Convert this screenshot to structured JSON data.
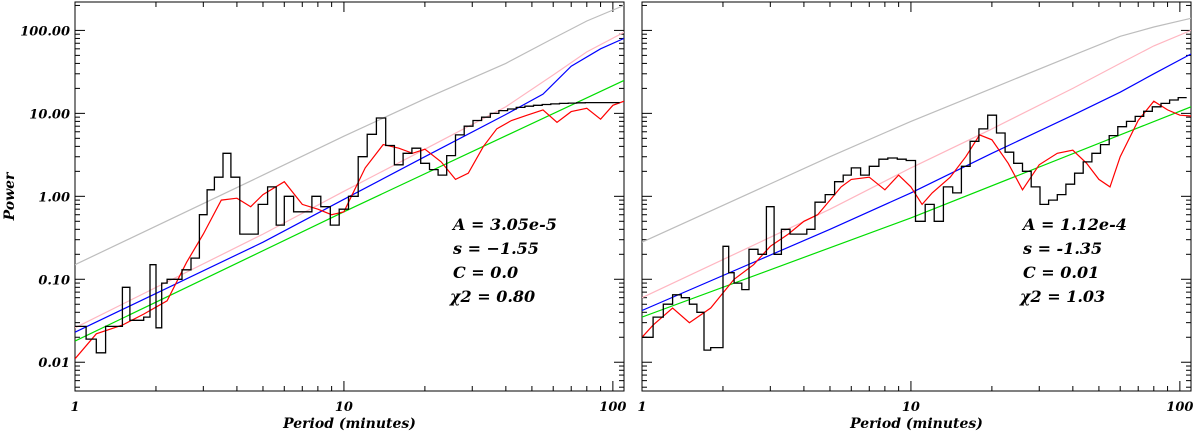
{
  "chart_data": [
    {
      "type": "line",
      "xlabel": "Period (minutes)",
      "ylabel": "Power",
      "xscale": "log",
      "yscale": "log",
      "xlim": [
        1,
        110
      ],
      "ylim": [
        0.0045,
        220
      ],
      "xticks": [
        {
          "v": 1,
          "label": "1"
        },
        {
          "v": 10,
          "label": "10"
        },
        {
          "v": 100,
          "label": "100"
        }
      ],
      "yticks": [
        {
          "v": 0.01,
          "label": "0.01"
        },
        {
          "v": 0.1,
          "label": "0.10"
        },
        {
          "v": 1,
          "label": "1.00"
        },
        {
          "v": 10,
          "label": "10.00"
        },
        {
          "v": 100,
          "label": "100.00"
        }
      ],
      "annotations": [
        "A = 3.05e-5",
        "s = −1.55",
        "C = 0.0",
        "χ2 = 0.80"
      ],
      "series": [
        {
          "color": "#bdbdbd",
          "style": "line",
          "x": [
            1,
            5,
            10,
            20,
            40,
            60,
            80,
            110
          ],
          "y": [
            0.15,
            1.8,
            5.3,
            15,
            40,
            80,
            130,
            200
          ]
        },
        {
          "color": "#ffb6c1",
          "style": "line",
          "x": [
            1,
            5,
            10,
            20,
            40,
            60,
            80,
            110
          ],
          "y": [
            0.026,
            0.35,
            1.15,
            3.7,
            12,
            29,
            55,
            95
          ]
        },
        {
          "color": "#0000ff",
          "style": "line",
          "x": [
            1,
            5,
            10,
            20,
            40,
            55,
            70,
            90,
            110
          ],
          "y": [
            0.023,
            0.28,
            0.92,
            3.0,
            9.7,
            17,
            37,
            60,
            80
          ]
        },
        {
          "color": "#00dd00",
          "style": "line",
          "x": [
            1,
            10,
            110
          ],
          "y": [
            0.018,
            0.65,
            25
          ]
        },
        {
          "color": "#ff0000",
          "style": "line",
          "x": [
            1,
            1.2,
            1.5,
            1.8,
            2.2,
            2.6,
            3.0,
            3.5,
            4.0,
            4.5,
            5.0,
            6.0,
            7.0,
            8.0,
            9.0,
            10,
            12,
            14,
            16,
            18,
            20,
            23,
            26,
            29,
            33,
            37,
            42,
            48,
            55,
            62,
            70,
            80,
            90,
            100,
            110
          ],
          "y": [
            0.011,
            0.022,
            0.028,
            0.038,
            0.055,
            0.16,
            0.35,
            0.9,
            0.95,
            0.75,
            1.05,
            1.5,
            0.8,
            0.7,
            0.6,
            0.65,
            2.2,
            4.2,
            3.8,
            3.3,
            3.7,
            2.6,
            1.6,
            1.9,
            4.0,
            6.5,
            8.2,
            9.5,
            11.0,
            7.8,
            10.5,
            11.5,
            8.5,
            12.5,
            14.0
          ]
        },
        {
          "color": "#000000",
          "style": "step",
          "x": [
            1,
            1.1,
            1.2,
            1.3,
            1.4,
            1.5,
            1.6,
            1.7,
            1.8,
            1.9,
            2.0,
            2.1,
            2.2,
            2.35,
            2.5,
            2.7,
            2.9,
            3.1,
            3.3,
            3.55,
            3.8,
            4.1,
            4.4,
            4.8,
            5.2,
            5.6,
            6.0,
            6.5,
            7.0,
            7.6,
            8.2,
            8.9,
            9.6,
            10.4,
            11.3,
            12.2,
            13.2,
            14.3,
            15.4,
            16.6,
            17.9,
            19.3,
            20.8,
            22.4,
            24.1,
            26.0,
            28.0,
            30.2,
            32.5,
            35.0,
            37.7,
            40.6,
            43.7,
            47.1,
            50.7,
            54.6,
            58.8,
            63.3,
            68.2,
            73.4,
            79.0,
            85.1,
            91.6,
            98.6,
            106
          ],
          "y": [
            0.027,
            0.019,
            0.013,
            0.027,
            0.027,
            0.08,
            0.032,
            0.032,
            0.035,
            0.15,
            0.026,
            0.09,
            0.1,
            0.1,
            0.13,
            0.18,
            0.6,
            1.2,
            1.7,
            3.3,
            1.7,
            0.35,
            0.35,
            0.8,
            1.3,
            0.45,
            1.0,
            0.65,
            0.65,
            1.0,
            0.75,
            0.45,
            0.7,
            1.0,
            3.0,
            5.6,
            8.8,
            4.1,
            2.4,
            3.3,
            3.8,
            2.5,
            2.1,
            1.8,
            3.1,
            5.5,
            7.0,
            8.2,
            9.0,
            10.0,
            10.8,
            11.3,
            11.8,
            12.2,
            12.5,
            12.8,
            13.0,
            13.2,
            13.3,
            13.4,
            13.5,
            13.5,
            13.5,
            13.5,
            13.5
          ]
        }
      ]
    },
    {
      "type": "line",
      "xlabel": "Period (minutes)",
      "ylabel": "",
      "xscale": "log",
      "yscale": "log",
      "xlim": [
        1,
        110
      ],
      "ylim": [
        0.0045,
        220
      ],
      "xticks": [
        {
          "v": 1,
          "label": "1"
        },
        {
          "v": 10,
          "label": "10"
        },
        {
          "v": 100,
          "label": "100"
        }
      ],
      "yticks": [],
      "annotations": [
        "A = 1.12e-4",
        "s = -1.35",
        "C = 0.01",
        "χ2 = 1.03"
      ],
      "series": [
        {
          "color": "#bdbdbd",
          "style": "line",
          "x": [
            1,
            5,
            10,
            20,
            40,
            60,
            80,
            110
          ],
          "y": [
            0.28,
            3.0,
            8.0,
            20,
            50,
            85,
            110,
            140
          ]
        },
        {
          "color": "#ffb6c1",
          "style": "line",
          "x": [
            1,
            5,
            10,
            20,
            40,
            60,
            80,
            110
          ],
          "y": [
            0.06,
            0.7,
            2.2,
            6.5,
            20,
            40,
            65,
            100
          ]
        },
        {
          "color": "#0000ff",
          "style": "line",
          "x": [
            1,
            5,
            10,
            20,
            40,
            60,
            80,
            110
          ],
          "y": [
            0.042,
            0.4,
            1.1,
            3.3,
            9.5,
            18,
            30,
            52
          ]
        },
        {
          "color": "#00dd00",
          "style": "line",
          "x": [
            1,
            10,
            110
          ],
          "y": [
            0.035,
            0.55,
            12
          ]
        },
        {
          "color": "#ff0000",
          "style": "line",
          "x": [
            1,
            1.1,
            1.3,
            1.5,
            1.8,
            2.2,
            2.6,
            3.0,
            3.5,
            4.0,
            4.5,
            5.0,
            5.5,
            6.0,
            7.0,
            8.0,
            9.0,
            10,
            11,
            12,
            14,
            16,
            18,
            20,
            23,
            26,
            30,
            35,
            40,
            45,
            50,
            55,
            60,
            70,
            80,
            90,
            100,
            110
          ],
          "y": [
            0.02,
            0.028,
            0.045,
            0.03,
            0.045,
            0.1,
            0.15,
            0.25,
            0.35,
            0.5,
            0.6,
            0.9,
            1.3,
            1.6,
            1.7,
            1.2,
            1.8,
            1.3,
            0.8,
            1.1,
            1.7,
            3.0,
            5.5,
            4.8,
            2.5,
            1.2,
            2.4,
            3.3,
            3.6,
            2.5,
            1.6,
            1.3,
            3.0,
            8.2,
            14.0,
            11.0,
            9.5,
            9.3
          ]
        },
        {
          "color": "#000000",
          "style": "step",
          "x": [
            1,
            1.1,
            1.2,
            1.3,
            1.4,
            1.5,
            1.6,
            1.7,
            1.8,
            1.9,
            2.0,
            2.1,
            2.2,
            2.35,
            2.5,
            2.7,
            2.9,
            3.1,
            3.3,
            3.55,
            3.8,
            4.1,
            4.4,
            4.8,
            5.2,
            5.6,
            6.0,
            6.5,
            7.0,
            7.6,
            8.2,
            8.9,
            9.6,
            10.4,
            11.3,
            12.2,
            13.2,
            14.3,
            15.4,
            16.6,
            17.9,
            19.3,
            20.8,
            22.4,
            24.1,
            26.0,
            28.0,
            30.2,
            32.5,
            35.0,
            37.7,
            40.6,
            43.7,
            47.1,
            50.7,
            54.6,
            58.8,
            63.3,
            68.2,
            73.4,
            79.0,
            85.1,
            91.6,
            98.6,
            106
          ],
          "y": [
            0.02,
            0.035,
            0.05,
            0.065,
            0.06,
            0.05,
            0.04,
            0.014,
            0.015,
            0.015,
            0.25,
            0.12,
            0.09,
            0.075,
            0.23,
            0.2,
            0.75,
            0.2,
            0.4,
            0.35,
            0.35,
            0.4,
            0.85,
            1.05,
            1.5,
            1.8,
            2.2,
            1.8,
            2.3,
            2.8,
            2.9,
            2.8,
            2.7,
            0.5,
            0.8,
            0.5,
            1.3,
            1.1,
            2.3,
            4.6,
            6.5,
            9.5,
            5.8,
            3.4,
            2.5,
            2.0,
            1.3,
            0.8,
            0.9,
            1.05,
            1.4,
            1.9,
            2.6,
            3.3,
            4.2,
            5.4,
            6.9,
            8.0,
            9.2,
            10.6,
            12.0,
            13.2,
            14.5,
            15.5,
            16.5
          ]
        }
      ]
    }
  ]
}
